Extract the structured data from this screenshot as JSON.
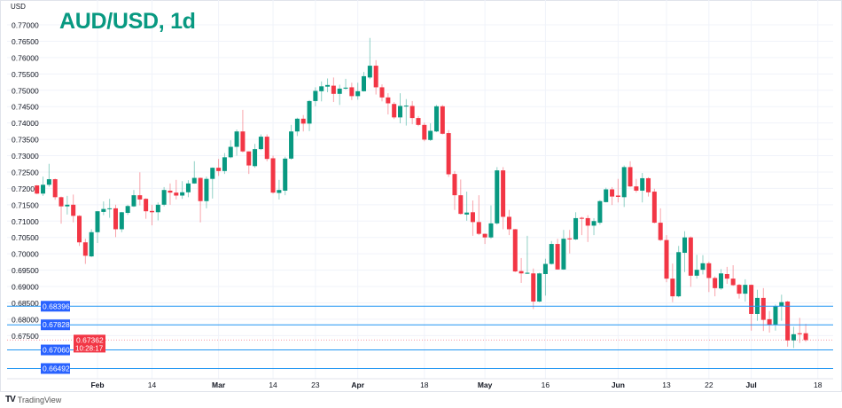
{
  "header": {
    "title": "AUD/USD, 1d",
    "unit": "USD"
  },
  "footer": {
    "brand": "TradingView",
    "logo_mark": "TV"
  },
  "colors": {
    "up": "#089981",
    "down": "#f23645",
    "level_line": "#2196f3",
    "level_label": "#2962ff",
    "grid": "#f0f3fa"
  },
  "price_label": {
    "value": "0.67362",
    "countdown": "10:28:17"
  },
  "levels": [
    "0.68396",
    "0.67828",
    "0.67060",
    "0.66492"
  ],
  "chart_data": {
    "type": "candlestick",
    "title": "AUD/USD, 1d",
    "ylabel": "USD",
    "ylim": [
      0.664,
      0.772
    ],
    "yticks": [
      "0.77000",
      "0.76500",
      "0.76000",
      "0.75500",
      "0.75000",
      "0.74500",
      "0.74000",
      "0.73500",
      "0.73000",
      "0.72500",
      "0.72000",
      "0.71500",
      "0.71000",
      "0.70500",
      "0.70000",
      "0.69500",
      "0.69000",
      "0.68500",
      "0.68000",
      "0.67500"
    ],
    "xticks": [
      {
        "label": "Feb",
        "index": 10,
        "major": true
      },
      {
        "label": "14",
        "index": 19,
        "major": false
      },
      {
        "label": "Mar",
        "index": 30,
        "major": true
      },
      {
        "label": "14",
        "index": 39,
        "major": false
      },
      {
        "label": "23",
        "index": 46,
        "major": false
      },
      {
        "label": "Apr",
        "index": 53,
        "major": true
      },
      {
        "label": "18",
        "index": 64,
        "major": false
      },
      {
        "label": "May",
        "index": 74,
        "major": true
      },
      {
        "label": "16",
        "index": 84,
        "major": false
      },
      {
        "label": "Jun",
        "index": 96,
        "major": true
      },
      {
        "label": "13",
        "index": 104,
        "major": false
      },
      {
        "label": "22",
        "index": 111,
        "major": false
      },
      {
        "label": "Jul",
        "index": 118,
        "major": true
      },
      {
        "label": "18",
        "index": 129,
        "major": false
      }
    ],
    "grid": true,
    "ohlc_fields": [
      "open",
      "high",
      "low",
      "close"
    ],
    "candles": [
      [
        0.7209,
        0.721,
        0.7182,
        0.7184
      ],
      [
        0.7184,
        0.7236,
        0.7177,
        0.7211
      ],
      [
        0.7211,
        0.7275,
        0.7205,
        0.7228
      ],
      [
        0.7228,
        0.723,
        0.7165,
        0.7173
      ],
      [
        0.7173,
        0.7175,
        0.7092,
        0.7145
      ],
      [
        0.7145,
        0.7177,
        0.712,
        0.715
      ],
      [
        0.715,
        0.7181,
        0.7096,
        0.7116
      ],
      [
        0.7116,
        0.7118,
        0.7024,
        0.7035
      ],
      [
        0.7035,
        0.7046,
        0.6969,
        0.6994
      ],
      [
        0.6992,
        0.7075,
        0.699,
        0.7066
      ],
      [
        0.7066,
        0.7131,
        0.7033,
        0.713
      ],
      [
        0.7128,
        0.716,
        0.7118,
        0.7137
      ],
      [
        0.7137,
        0.7168,
        0.711,
        0.7139
      ],
      [
        0.7139,
        0.715,
        0.7051,
        0.7075
      ],
      [
        0.7075,
        0.7128,
        0.7066,
        0.7127
      ],
      [
        0.7125,
        0.715,
        0.7119,
        0.7146
      ],
      [
        0.7145,
        0.7195,
        0.7143,
        0.7179
      ],
      [
        0.7179,
        0.7249,
        0.7148,
        0.7166
      ],
      [
        0.7168,
        0.717,
        0.7107,
        0.713
      ],
      [
        0.7131,
        0.715,
        0.7087,
        0.7127
      ],
      [
        0.7127,
        0.7157,
        0.7102,
        0.715
      ],
      [
        0.715,
        0.7204,
        0.7145,
        0.7195
      ],
      [
        0.7193,
        0.7215,
        0.715,
        0.7187
      ],
      [
        0.7187,
        0.7226,
        0.7166,
        0.7178
      ],
      [
        0.7178,
        0.7222,
        0.7168,
        0.7188
      ],
      [
        0.7188,
        0.7225,
        0.7173,
        0.7215
      ],
      [
        0.7215,
        0.7283,
        0.7214,
        0.7232
      ],
      [
        0.7232,
        0.7233,
        0.7096,
        0.7161
      ],
      [
        0.7161,
        0.7236,
        0.7139,
        0.7229
      ],
      [
        0.7229,
        0.7264,
        0.7169,
        0.7263
      ],
      [
        0.7263,
        0.729,
        0.7238,
        0.7253
      ],
      [
        0.7253,
        0.7308,
        0.7244,
        0.7295
      ],
      [
        0.7295,
        0.7347,
        0.7292,
        0.7327
      ],
      [
        0.7327,
        0.738,
        0.73,
        0.7374
      ],
      [
        0.7374,
        0.744,
        0.731,
        0.7313
      ],
      [
        0.7313,
        0.7313,
        0.7244,
        0.727
      ],
      [
        0.7268,
        0.7336,
        0.7263,
        0.732
      ],
      [
        0.732,
        0.7365,
        0.7317,
        0.7358
      ],
      [
        0.7358,
        0.7365,
        0.7283,
        0.729
      ],
      [
        0.7292,
        0.73,
        0.7184,
        0.7187
      ],
      [
        0.7186,
        0.7226,
        0.7166,
        0.7195
      ],
      [
        0.7193,
        0.7297,
        0.7179,
        0.7291
      ],
      [
        0.7291,
        0.7394,
        0.7288,
        0.7374
      ],
      [
        0.7374,
        0.7416,
        0.736,
        0.7413
      ],
      [
        0.7413,
        0.7424,
        0.7374,
        0.7398
      ],
      [
        0.7398,
        0.747,
        0.7375,
        0.7467
      ],
      [
        0.7467,
        0.7509,
        0.7451,
        0.7498
      ],
      [
        0.7497,
        0.7527,
        0.7466,
        0.7512
      ],
      [
        0.7511,
        0.7536,
        0.7494,
        0.7516
      ],
      [
        0.7514,
        0.7539,
        0.7464,
        0.7489
      ],
      [
        0.7489,
        0.7517,
        0.7455,
        0.7505
      ],
      [
        0.7505,
        0.7535,
        0.7502,
        0.7508
      ],
      [
        0.7509,
        0.7523,
        0.747,
        0.7482
      ],
      [
        0.7482,
        0.7523,
        0.7471,
        0.7497
      ],
      [
        0.7497,
        0.7556,
        0.7496,
        0.7543
      ],
      [
        0.7539,
        0.766,
        0.7534,
        0.7575
      ],
      [
        0.7575,
        0.7592,
        0.7487,
        0.7509
      ],
      [
        0.7509,
        0.7518,
        0.7466,
        0.7478
      ],
      [
        0.7478,
        0.7491,
        0.7426,
        0.746
      ],
      [
        0.7458,
        0.7464,
        0.7412,
        0.7417
      ],
      [
        0.7417,
        0.7491,
        0.7399,
        0.7452
      ],
      [
        0.7451,
        0.7473,
        0.7392,
        0.7453
      ],
      [
        0.7452,
        0.7467,
        0.7396,
        0.7415
      ],
      [
        0.7415,
        0.7421,
        0.739,
        0.7394
      ],
      [
        0.7394,
        0.7401,
        0.7344,
        0.7349
      ],
      [
        0.7348,
        0.7399,
        0.7345,
        0.7376
      ],
      [
        0.7374,
        0.7455,
        0.7372,
        0.7451
      ],
      [
        0.7451,
        0.7455,
        0.7365,
        0.7367
      ],
      [
        0.7369,
        0.7378,
        0.7235,
        0.7243
      ],
      [
        0.7244,
        0.7253,
        0.7134,
        0.7179
      ],
      [
        0.7179,
        0.7227,
        0.712,
        0.7122
      ],
      [
        0.712,
        0.719,
        0.7101,
        0.7126
      ],
      [
        0.7127,
        0.7163,
        0.7055,
        0.7097
      ],
      [
        0.7097,
        0.7179,
        0.7057,
        0.7061
      ],
      [
        0.7061,
        0.7062,
        0.703,
        0.705
      ],
      [
        0.705,
        0.7148,
        0.7046,
        0.7093
      ],
      [
        0.7093,
        0.7265,
        0.7089,
        0.7255
      ],
      [
        0.7255,
        0.7265,
        0.7075,
        0.7113
      ],
      [
        0.7113,
        0.7134,
        0.7057,
        0.7075
      ],
      [
        0.7075,
        0.7076,
        0.6944,
        0.6946
      ],
      [
        0.6947,
        0.6987,
        0.6911,
        0.694
      ],
      [
        0.6939,
        0.7055,
        0.6938,
        0.6942
      ],
      [
        0.694,
        0.6955,
        0.6831,
        0.6854
      ],
      [
        0.6854,
        0.6942,
        0.6852,
        0.694
      ],
      [
        0.6938,
        0.6985,
        0.6872,
        0.6969
      ],
      [
        0.6969,
        0.7039,
        0.6967,
        0.703
      ],
      [
        0.703,
        0.7046,
        0.6952,
        0.6952
      ],
      [
        0.6952,
        0.7073,
        0.6951,
        0.7046
      ],
      [
        0.7047,
        0.7073,
        0.7001,
        0.7044
      ],
      [
        0.7044,
        0.7127,
        0.7042,
        0.7109
      ],
      [
        0.711,
        0.7113,
        0.7057,
        0.7107
      ],
      [
        0.7109,
        0.7118,
        0.7036,
        0.7086
      ],
      [
        0.7086,
        0.7109,
        0.7057,
        0.71
      ],
      [
        0.7095,
        0.7164,
        0.7089,
        0.7161
      ],
      [
        0.7158,
        0.7202,
        0.7157,
        0.7197
      ],
      [
        0.7197,
        0.7204,
        0.7149,
        0.7175
      ],
      [
        0.7178,
        0.7229,
        0.7157,
        0.7174
      ],
      [
        0.7173,
        0.727,
        0.7143,
        0.7265
      ],
      [
        0.7265,
        0.7283,
        0.7204,
        0.7206
      ],
      [
        0.7206,
        0.7229,
        0.7187,
        0.7193
      ],
      [
        0.7193,
        0.7247,
        0.7157,
        0.7231
      ],
      [
        0.7231,
        0.7234,
        0.7175,
        0.7188
      ],
      [
        0.719,
        0.7199,
        0.7093,
        0.7095
      ],
      [
        0.7095,
        0.7139,
        0.7039,
        0.7042
      ],
      [
        0.7042,
        0.7057,
        0.6913,
        0.6924
      ],
      [
        0.6924,
        0.697,
        0.6852,
        0.687
      ],
      [
        0.687,
        0.7024,
        0.6867,
        0.7005
      ],
      [
        0.7003,
        0.7069,
        0.6944,
        0.705
      ],
      [
        0.705,
        0.7053,
        0.6899,
        0.6933
      ],
      [
        0.6933,
        0.6997,
        0.6924,
        0.6951
      ],
      [
        0.6951,
        0.6996,
        0.6937,
        0.6971
      ],
      [
        0.6971,
        0.6976,
        0.6883,
        0.6926
      ],
      [
        0.6926,
        0.6931,
        0.687,
        0.6895
      ],
      [
        0.6894,
        0.6953,
        0.689,
        0.694
      ],
      [
        0.6938,
        0.696,
        0.6908,
        0.6924
      ],
      [
        0.6924,
        0.6965,
        0.6902,
        0.6904
      ],
      [
        0.6905,
        0.6908,
        0.6863,
        0.6878
      ],
      [
        0.6878,
        0.6922,
        0.6854,
        0.6905
      ],
      [
        0.6905,
        0.6906,
        0.6765,
        0.6816
      ],
      [
        0.6816,
        0.689,
        0.6795,
        0.6865
      ],
      [
        0.6865,
        0.6895,
        0.6764,
        0.6798
      ],
      [
        0.68,
        0.6825,
        0.6759,
        0.6783
      ],
      [
        0.6783,
        0.6845,
        0.6765,
        0.684
      ],
      [
        0.684,
        0.6875,
        0.6795,
        0.6852
      ],
      [
        0.6854,
        0.6856,
        0.6716,
        0.6735
      ],
      [
        0.6735,
        0.6777,
        0.6712,
        0.6754
      ],
      [
        0.6757,
        0.6804,
        0.6727,
        0.6754
      ],
      [
        0.6757,
        0.6786,
        0.6731,
        0.67362
      ]
    ]
  }
}
